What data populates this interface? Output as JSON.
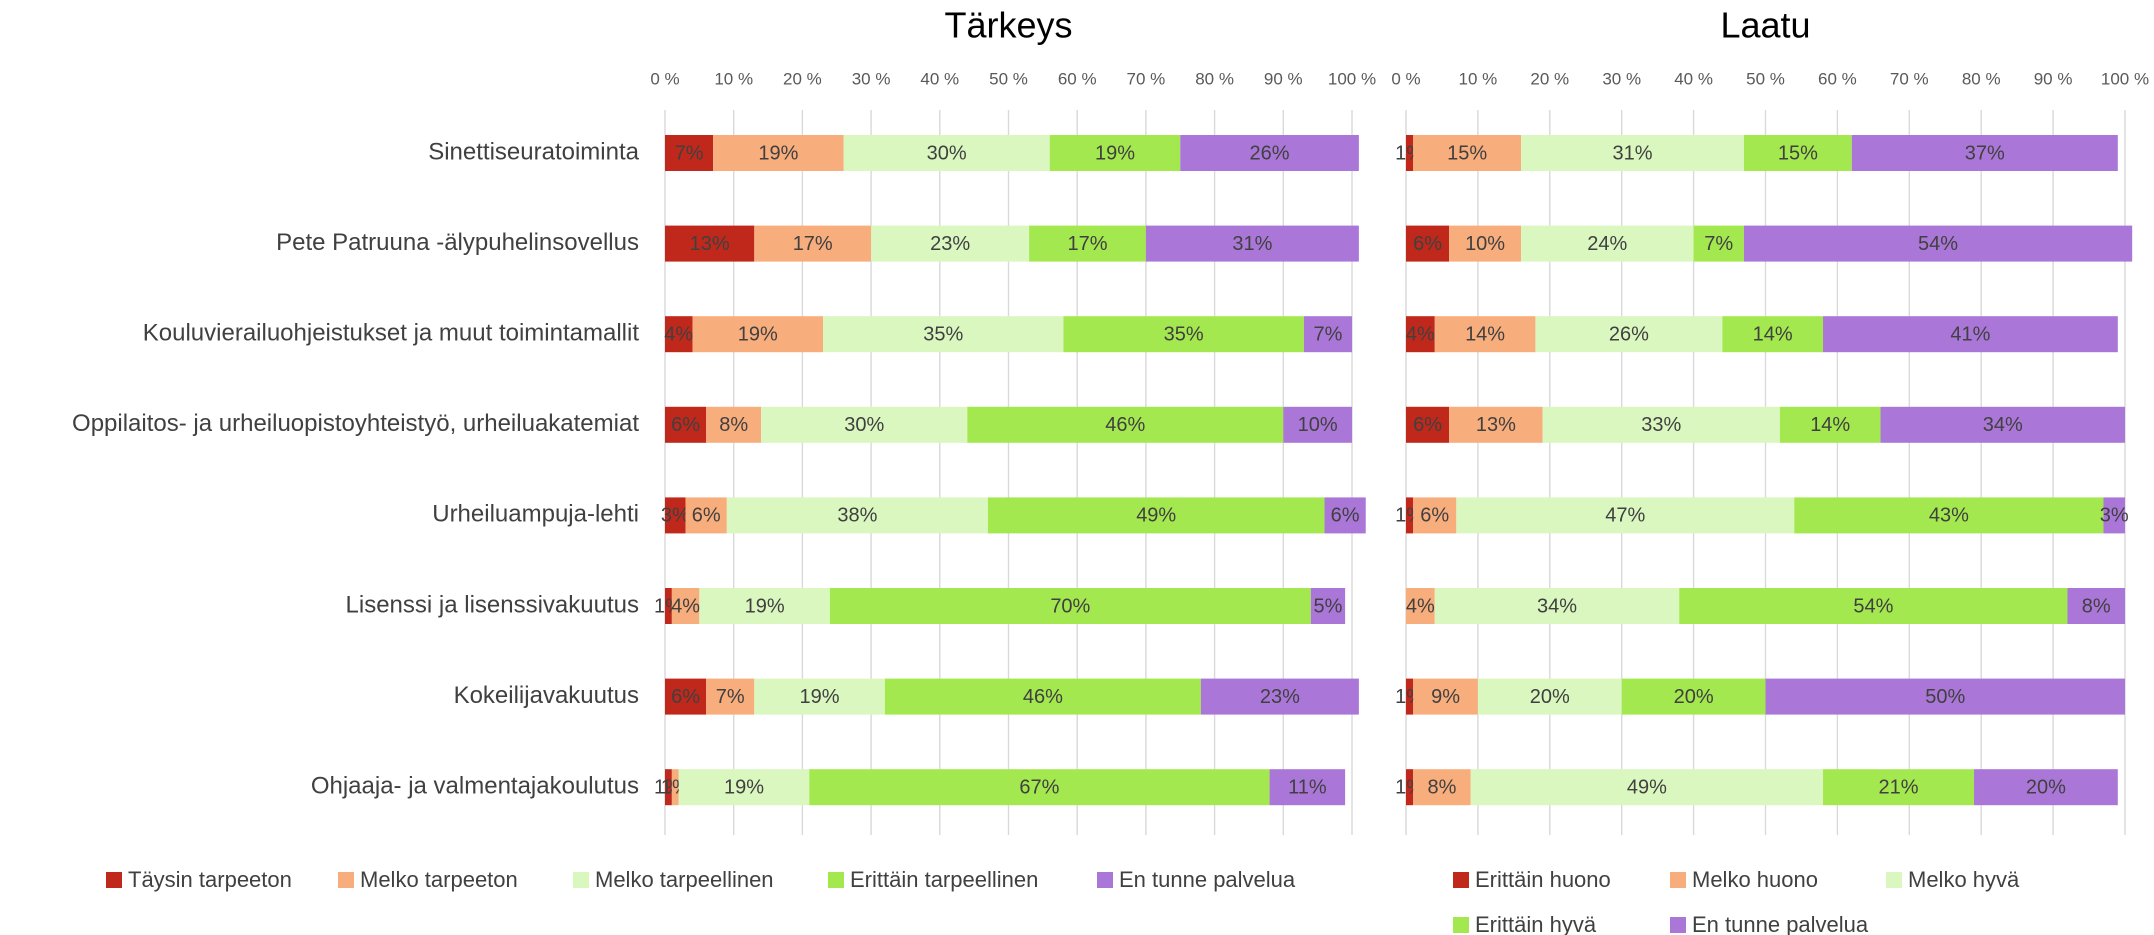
{
  "chart_data": [
    {
      "type": "stacked-barh",
      "title": "Tärkeys",
      "categories": [
        "Sinettiseuratoiminta",
        "Pete Patruuna -älypuhelinsovellus",
        "Kouluvierailuohjeistukset ja muut toimintamallit",
        "Oppilaitos- ja urheiluopistoyhteistyö, urheiluakatemiat",
        "Urheiluampuja-lehti",
        "Lisenssi ja lisenssivakuutus",
        "Kokeilijavakuutus",
        "Ohjaaja- ja valmentajakoulutus"
      ],
      "xlim": [
        0,
        100
      ],
      "xticks": [
        {
          "value": 0,
          "label": "0 %"
        },
        {
          "value": 10,
          "label": "10 %"
        },
        {
          "value": 20,
          "label": "20 %"
        },
        {
          "value": 30,
          "label": "30 %"
        },
        {
          "value": 40,
          "label": "40 %"
        },
        {
          "value": 50,
          "label": "50 %"
        },
        {
          "value": 60,
          "label": "60 %"
        },
        {
          "value": 70,
          "label": "70 %"
        },
        {
          "value": 80,
          "label": "80 %"
        },
        {
          "value": 90,
          "label": "90 %"
        },
        {
          "value": 100,
          "label": "100 %"
        }
      ],
      "grid": true,
      "legend": "bottom",
      "series": [
        {
          "name": "Täysin tarpeeton",
          "color": "#c0281b",
          "values": [
            7,
            13,
            4,
            6,
            3,
            1,
            6,
            1
          ],
          "value_labels": [
            "7%",
            "13%",
            "4%",
            "6%",
            "3%",
            "1%",
            "6%",
            "1%"
          ]
        },
        {
          "name": "Melko tarpeeton",
          "color": "#f8ad7c",
          "values": [
            19,
            17,
            19,
            8,
            6,
            4,
            7,
            1
          ],
          "value_labels": [
            "19%",
            "17%",
            "19%",
            "8%",
            "6%",
            "4%",
            "7%",
            "1%"
          ]
        },
        {
          "name": "Melko tarpeellinen",
          "color": "#daf7c0",
          "values": [
            30,
            23,
            35,
            30,
            38,
            19,
            19,
            19
          ],
          "value_labels": [
            "30%",
            "23%",
            "35%",
            "30%",
            "38%",
            "19%",
            "19%",
            "19%"
          ]
        },
        {
          "name": "Erittäin tarpeellinen",
          "color": "#a4e84f",
          "values": [
            19,
            17,
            35,
            46,
            49,
            70,
            46,
            67
          ],
          "value_labels": [
            "19%",
            "17%",
            "35%",
            "46%",
            "49%",
            "70%",
            "46%",
            "67%"
          ]
        },
        {
          "name": "En tunne palvelua",
          "color": "#aa77d8",
          "values": [
            26,
            31,
            7,
            10,
            6,
            5,
            23,
            11
          ],
          "value_labels": [
            "26%",
            "31%",
            "7%",
            "10%",
            "6%",
            "5%",
            "23%",
            "11%"
          ]
        }
      ]
    },
    {
      "type": "stacked-barh",
      "title": "Laatu",
      "xlim": [
        0,
        100
      ],
      "xticks": [
        {
          "value": 0,
          "label": "0 %"
        },
        {
          "value": 10,
          "label": "10 %"
        },
        {
          "value": 20,
          "label": "20 %"
        },
        {
          "value": 30,
          "label": "30 %"
        },
        {
          "value": 40,
          "label": "40 %"
        },
        {
          "value": 50,
          "label": "50 %"
        },
        {
          "value": 60,
          "label": "60 %"
        },
        {
          "value": 70,
          "label": "70 %"
        },
        {
          "value": 80,
          "label": "80 %"
        },
        {
          "value": 90,
          "label": "90 %"
        },
        {
          "value": 100,
          "label": "100 %"
        }
      ],
      "grid": true,
      "legend": "bottom",
      "series": [
        {
          "name": "Erittäin huono",
          "color": "#c0281b",
          "values": [
            1,
            6,
            4,
            6,
            1,
            0,
            1,
            1
          ],
          "value_labels": [
            "1%",
            "6%",
            "4%",
            "6%",
            "1%",
            null,
            "1%",
            "1%"
          ]
        },
        {
          "name": "Melko huono",
          "color": "#f8ad7c",
          "values": [
            15,
            10,
            14,
            13,
            6,
            4,
            9,
            8
          ],
          "value_labels": [
            "15%",
            "10%",
            "14%",
            "13%",
            "6%",
            "4%",
            "9%",
            "8%"
          ]
        },
        {
          "name": "Melko hyvä",
          "color": "#daf7c0",
          "values": [
            31,
            24,
            26,
            33,
            47,
            34,
            20,
            49
          ],
          "value_labels": [
            "31%",
            "24%",
            "26%",
            "33%",
            "47%",
            "34%",
            "20%",
            "49%"
          ]
        },
        {
          "name": "Erittäin hyvä",
          "color": "#a4e84f",
          "values": [
            15,
            7,
            14,
            14,
            43,
            54,
            20,
            21
          ],
          "value_labels": [
            "15%",
            "7%",
            "14%",
            "14%",
            "43%",
            "54%",
            "20%",
            "21%"
          ]
        },
        {
          "name": "En tunne palvelua",
          "color": "#aa77d8",
          "values": [
            37,
            54,
            41,
            34,
            3,
            8,
            50,
            20
          ],
          "value_labels": [
            "37%",
            "54%",
            "41%",
            "34%",
            "3%",
            "8%",
            "50%",
            "20%"
          ]
        }
      ]
    }
  ]
}
